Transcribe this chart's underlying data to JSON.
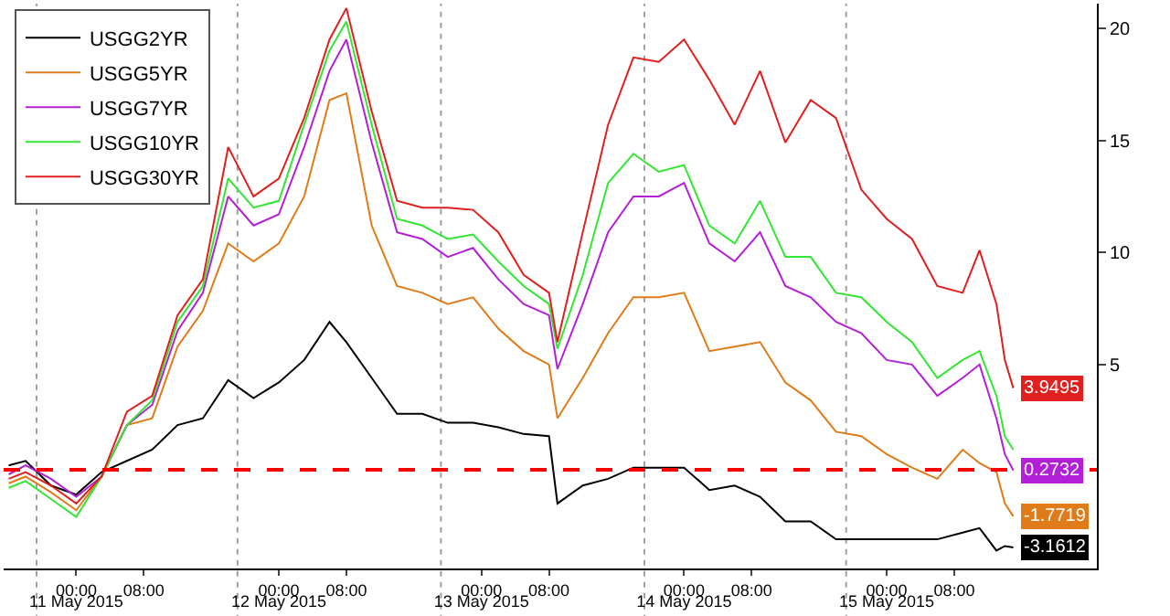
{
  "chart_data": {
    "type": "line",
    "x": [
      "2015-05-10T16:00",
      "2015-05-10T18:00",
      "2015-05-10T21:00",
      "2015-05-11T00:00",
      "2015-05-11T03:00",
      "2015-05-11T06:00",
      "2015-05-11T09:00",
      "2015-05-11T12:00",
      "2015-05-11T15:00",
      "2015-05-11T18:00",
      "2015-05-11T21:00",
      "2015-05-12T00:00",
      "2015-05-12T03:00",
      "2015-05-12T06:00",
      "2015-05-12T08:00",
      "2015-05-12T11:00",
      "2015-05-12T14:00",
      "2015-05-12T17:00",
      "2015-05-12T20:00",
      "2015-05-12T23:00",
      "2015-05-13T02:00",
      "2015-05-13T05:00",
      "2015-05-13T08:00",
      "2015-05-13T09:00",
      "2015-05-13T12:00",
      "2015-05-13T15:00",
      "2015-05-13T18:00",
      "2015-05-13T21:00",
      "2015-05-14T00:00",
      "2015-05-14T03:00",
      "2015-05-14T06:00",
      "2015-05-14T09:00",
      "2015-05-14T12:00",
      "2015-05-14T15:00",
      "2015-05-14T18:00",
      "2015-05-14T21:00",
      "2015-05-15T00:00",
      "2015-05-15T03:00",
      "2015-05-15T06:00",
      "2015-05-15T09:00",
      "2015-05-15T11:00",
      "2015-05-15T13:00",
      "2015-05-15T14:00",
      "2015-05-15T15:00"
    ],
    "series": [
      {
        "name": "USGG2YR",
        "color": "#000000",
        "values": [
          0.5,
          0.7,
          -0.4,
          -0.8,
          0.2,
          0.7,
          1.2,
          2.3,
          2.6,
          4.3,
          3.5,
          4.2,
          5.2,
          6.9,
          6.0,
          4.4,
          2.8,
          2.8,
          2.4,
          2.4,
          2.2,
          1.9,
          1.8,
          -1.2,
          -0.4,
          -0.1,
          0.4,
          0.4,
          0.4,
          -0.6,
          -0.4,
          -0.9,
          -2.0,
          -2.0,
          -2.8,
          -2.8,
          -2.8,
          -2.8,
          -2.8,
          -2.5,
          -2.3,
          -3.3,
          -3.1,
          -3.1612
        ],
        "value_labels": [
          null,
          null,
          null,
          null,
          null,
          null,
          null,
          null,
          null,
          null,
          null,
          null,
          null,
          null,
          null,
          null,
          null,
          null,
          null,
          null,
          null,
          null,
          null,
          null,
          null,
          null,
          null,
          null,
          null,
          null,
          null,
          null,
          null,
          null,
          null,
          null,
          null,
          null,
          null,
          null,
          null,
          null,
          null,
          "-3.1612"
        ]
      },
      {
        "name": "USGG5YR",
        "color": "#e07b1a",
        "values": [
          -0.3,
          0.0,
          -0.7,
          -1.5,
          0.0,
          2.3,
          2.6,
          5.8,
          7.4,
          10.4,
          9.6,
          10.4,
          12.5,
          16.8,
          17.1,
          11.2,
          8.5,
          8.2,
          7.7,
          8.0,
          6.6,
          5.6,
          5.0,
          2.6,
          4.4,
          6.4,
          8.0,
          8.0,
          8.2,
          5.6,
          5.8,
          6.0,
          4.2,
          3.4,
          2.0,
          1.8,
          1.0,
          0.4,
          -0.1,
          1.2,
          0.6,
          0.2,
          -1.2,
          -1.7719
        ],
        "value_labels": [
          null,
          null,
          null,
          null,
          null,
          null,
          null,
          null,
          null,
          null,
          null,
          null,
          null,
          null,
          null,
          null,
          null,
          null,
          null,
          null,
          null,
          null,
          null,
          null,
          null,
          null,
          null,
          null,
          null,
          null,
          null,
          null,
          null,
          null,
          null,
          null,
          null,
          null,
          null,
          null,
          null,
          null,
          null,
          "-1.7719"
        ]
      },
      {
        "name": "USGG7YR",
        "color": "#b31fd6",
        "values": [
          0.1,
          0.5,
          -0.1,
          -0.9,
          0.0,
          2.3,
          3.2,
          6.5,
          8.2,
          12.5,
          11.2,
          11.7,
          14.7,
          18.1,
          19.5,
          14.9,
          10.9,
          10.6,
          9.8,
          10.2,
          8.8,
          7.7,
          7.2,
          4.8,
          7.7,
          10.9,
          12.5,
          12.5,
          13.1,
          10.4,
          9.6,
          10.9,
          8.5,
          8.0,
          6.9,
          6.4,
          5.2,
          5.0,
          3.6,
          4.4,
          5.0,
          2.6,
          1.0,
          0.2732
        ],
        "value_labels": [
          null,
          null,
          null,
          null,
          null,
          null,
          null,
          null,
          null,
          null,
          null,
          null,
          null,
          null,
          null,
          null,
          null,
          null,
          null,
          null,
          null,
          null,
          null,
          null,
          null,
          null,
          null,
          null,
          null,
          null,
          null,
          null,
          null,
          null,
          null,
          null,
          null,
          null,
          null,
          null,
          null,
          null,
          null,
          "0.2732"
        ]
      },
      {
        "name": "USGG10YR",
        "color": "#33e633",
        "values": [
          -0.5,
          -0.2,
          -1.0,
          -1.8,
          0.0,
          2.3,
          3.4,
          6.9,
          8.5,
          13.3,
          12.0,
          12.3,
          15.7,
          19.0,
          20.3,
          15.7,
          11.5,
          11.2,
          10.6,
          10.8,
          9.6,
          8.5,
          7.7,
          5.7,
          9.0,
          13.1,
          14.4,
          13.6,
          13.9,
          11.2,
          10.4,
          12.3,
          9.8,
          9.8,
          8.2,
          8.0,
          6.9,
          6.0,
          4.4,
          5.2,
          5.6,
          3.6,
          1.8,
          1.2
        ]
      },
      {
        "name": "USGG30YR",
        "color": "#e01f1f",
        "values": [
          -0.1,
          0.2,
          -0.4,
          -1.2,
          0.0,
          2.9,
          3.6,
          7.2,
          8.8,
          14.7,
          12.5,
          13.3,
          16.0,
          19.5,
          20.9,
          16.3,
          12.3,
          12.0,
          12.0,
          11.9,
          10.9,
          9.0,
          8.2,
          6.0,
          10.9,
          15.7,
          18.7,
          18.5,
          19.5,
          17.7,
          15.7,
          18.1,
          14.9,
          16.8,
          16.0,
          12.8,
          11.5,
          10.6,
          8.5,
          8.2,
          10.1,
          7.7,
          5.2,
          3.9495
        ],
        "value_labels": [
          null,
          null,
          null,
          null,
          null,
          null,
          null,
          null,
          null,
          null,
          null,
          null,
          null,
          null,
          null,
          null,
          null,
          null,
          null,
          null,
          null,
          null,
          null,
          null,
          null,
          null,
          null,
          null,
          null,
          null,
          null,
          null,
          null,
          null,
          null,
          null,
          null,
          null,
          null,
          null,
          null,
          null,
          null,
          "3.9495"
        ]
      }
    ],
    "xlim": [
      "2015-05-10T15:24",
      "2015-05-16T00:54"
    ],
    "xticks": [
      {
        "value": "2015-05-11T00:00",
        "label": "00:00"
      },
      {
        "value": "2015-05-11T08:00",
        "label": "08:00"
      },
      {
        "value": "2015-05-12T00:00",
        "label": "00:00"
      },
      {
        "value": "2015-05-12T08:00",
        "label": "08:00"
      },
      {
        "value": "2015-05-13T00:00",
        "label": "00:00"
      },
      {
        "value": "2015-05-13T08:00",
        "label": "08:00"
      },
      {
        "value": "2015-05-14T00:00",
        "label": "00:00"
      },
      {
        "value": "2015-05-14T08:00",
        "label": "08:00"
      },
      {
        "value": "2015-05-15T00:00",
        "label": "00:00"
      },
      {
        "value": "2015-05-15T08:00",
        "label": "08:00"
      }
    ],
    "x2lim": [
      "2015-05-10T15:24",
      "2015-05-16T00:54"
    ],
    "x2ticks": [
      {
        "value": "2015-05-11",
        "label": "11 May 2015"
      },
      {
        "value": "2015-05-12",
        "label": "12 May 2015"
      },
      {
        "value": "2015-05-13",
        "label": "13 May 2015"
      },
      {
        "value": "2015-05-14",
        "label": "14 May 2015"
      },
      {
        "value": "2015-05-15",
        "label": "15 May 2015"
      }
    ],
    "ylim": [
      -4.1,
      21.1
    ],
    "yticks": [
      5,
      10,
      15,
      20
    ],
    "ref_lines": [
      {
        "axis": "x",
        "value": "2015-05-10T19:18",
        "color": "#a0a0a0",
        "line_style": "dotted"
      },
      {
        "axis": "x",
        "value": "2015-05-11T19:06",
        "color": "#a0a0a0",
        "line_style": "dotted"
      },
      {
        "axis": "x",
        "value": "2015-05-12T19:12",
        "color": "#a0a0a0",
        "line_style": "dotted"
      },
      {
        "axis": "x",
        "value": "2015-05-13T19:18",
        "color": "#a0a0a0",
        "line_style": "dotted"
      },
      {
        "axis": "x",
        "value": "2015-05-14T19:12",
        "color": "#a0a0a0",
        "line_style": "dotted"
      },
      {
        "axis": "y",
        "value": 0.3,
        "color": "#ff0000",
        "line_style": "dashed"
      }
    ],
    "grid": false,
    "legend": "top left",
    "marker": "none",
    "line_style": "solid"
  }
}
